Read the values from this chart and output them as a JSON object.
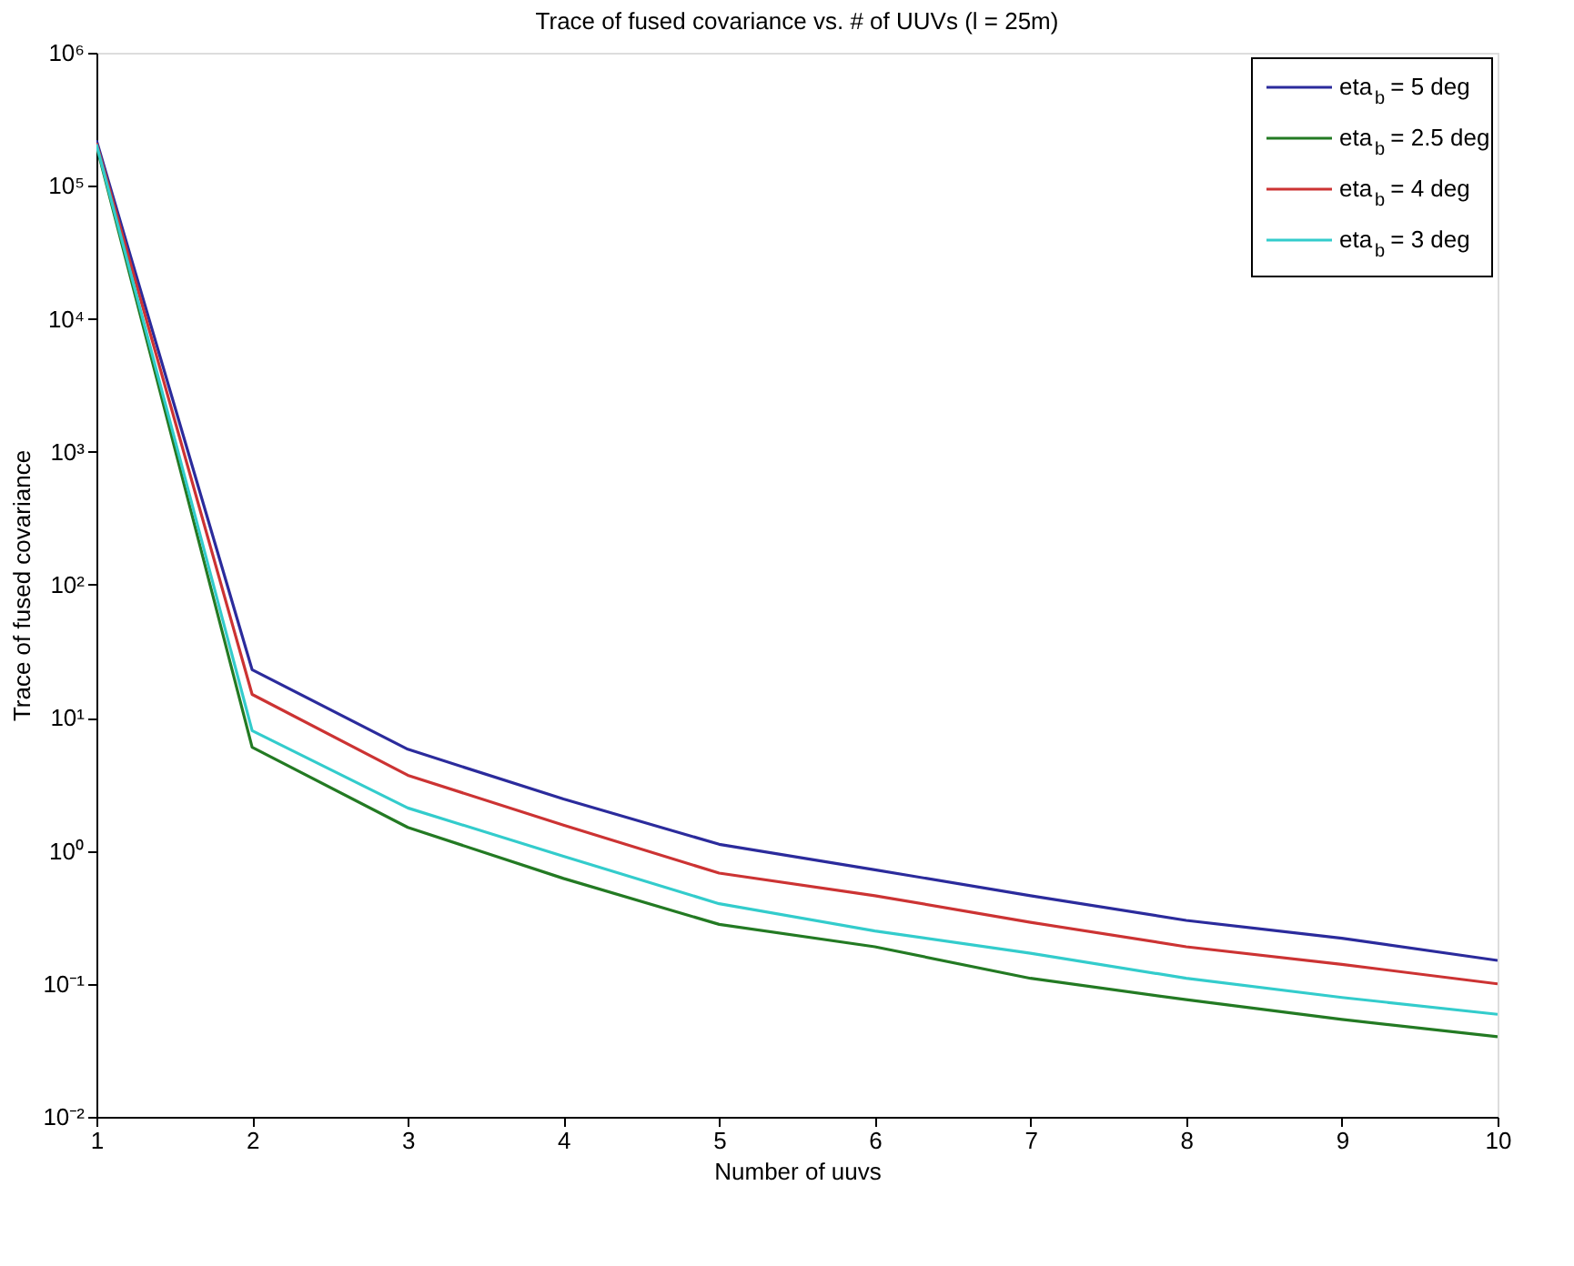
{
  "chart_data": {
    "type": "line",
    "title": "Trace of fused covariance vs. # of UUVs (l = 25m)",
    "xlabel": "Number of uuvs",
    "ylabel": "Trace of fused covariance",
    "log": "y",
    "x": [
      1,
      2,
      3,
      4,
      5,
      6,
      7,
      8,
      9,
      10
    ],
    "xlim": [
      1,
      10
    ],
    "xticks": [
      1,
      2,
      3,
      4,
      5,
      6,
      7,
      8,
      9,
      10
    ],
    "ylim": [
      0.01,
      1000000
    ],
    "yticks": [
      {
        "value": 0.01,
        "label": "10⁻²"
      },
      {
        "value": 0.1,
        "label": "10⁻¹"
      },
      {
        "value": 1,
        "label": "10⁰"
      },
      {
        "value": 10,
        "label": "10¹"
      },
      {
        "value": 100,
        "label": "10²"
      },
      {
        "value": 1000,
        "label": "10³"
      },
      {
        "value": 10000,
        "label": "10⁴"
      },
      {
        "value": 100000,
        "label": "10⁵"
      },
      {
        "value": 1000000,
        "label": "10⁶"
      }
    ],
    "grid": false,
    "legend": "top right",
    "marker": "none",
    "line_style": "solid",
    "series": [
      {
        "name": "eta$_{b}$ = 5 deg",
        "color": "#2b2b9c",
        "values": [
          220000,
          23,
          5.8,
          2.45,
          1.12,
          0.72,
          0.46,
          0.3,
          0.22,
          0.15
        ]
      },
      {
        "name": "eta$_{b}$ = 2.5 deg",
        "color": "#237a23",
        "values": [
          200000,
          6,
          1.5,
          0.62,
          0.28,
          0.19,
          0.11,
          0.076,
          0.054,
          0.04
        ]
      },
      {
        "name": "eta$_{b}$ = 4 deg",
        "color": "#cc3333",
        "values": [
          210000,
          15,
          3.7,
          1.56,
          0.68,
          0.46,
          0.29,
          0.19,
          0.14,
          0.1
        ]
      },
      {
        "name": "eta$_{b}$ = 3 deg",
        "color": "#33cccc",
        "values": [
          205000,
          8,
          2.1,
          0.91,
          0.4,
          0.25,
          0.17,
          0.11,
          0.079,
          0.059
        ]
      }
    ]
  }
}
